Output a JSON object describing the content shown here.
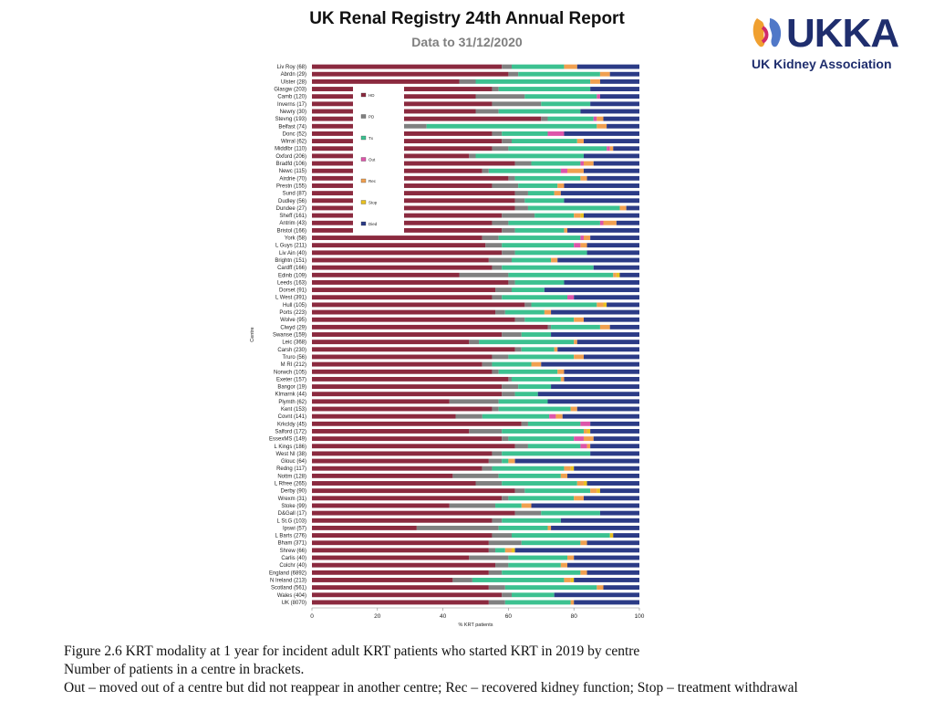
{
  "header": {
    "title": "UK Renal Registry 24th Annual Report",
    "subtitle": "Data to 31/12/2020",
    "logo_text": "UKKA",
    "logo_sub": "UK Kidney Association"
  },
  "caption": {
    "line1": "Figure 2.6 KRT modality at 1 year for incident adult KRT patients who started KRT in 2019 by centre",
    "line2": "Number of patients in a centre in brackets.",
    "line3": "Out – moved out of a centre but did not reappear in another centre; Rec – recovered kidney function; Stop – treatment withdrawal"
  },
  "colors": {
    "HD": "#8b2a3f",
    "PD": "#808080",
    "Tx": "#3cc190",
    "Out": "#dd55aa",
    "Rec": "#f0a050",
    "Stop": "#e8c020",
    "Died": "#2b3b86"
  },
  "chart_data": {
    "type": "bar",
    "orientation": "horizontal",
    "stacked": true,
    "xlabel": "% KRT patients",
    "ylabel": "Centre",
    "xlim": [
      0,
      100
    ],
    "xticks": [
      0,
      20,
      40,
      60,
      80,
      100
    ],
    "legend": [
      "HD",
      "PD",
      "Tx",
      "Out",
      "Rec",
      "Stop",
      "Died"
    ],
    "legend_position": "upper-left inside plot",
    "categories": [
      "Liv Roy (68)",
      "Abrdn (29)",
      "Ulster (28)",
      "Glasgw (203)",
      "Camb (120)",
      "Inverns (17)",
      "Newry (30)",
      "Stevng (193)",
      "Belfast (74)",
      "Donc (52)",
      "Wirral (62)",
      "Middlbr (110)",
      "Oxford (206)",
      "Bradfd (106)",
      "Newc (115)",
      "Airdrie (70)",
      "Prestn (155)",
      "Sund (87)",
      "Dudley (56)",
      "Dundee (27)",
      "Sheff (161)",
      "Antrim (43)",
      "Bristol (166)",
      "York (58)",
      "L Guys (211)",
      "Liv Ain (40)",
      "Brightn (151)",
      "Cardff (166)",
      "Edinb (109)",
      "Leeds (163)",
      "Dorset (91)",
      "L West (391)",
      "Hull (105)",
      "Ports (223)",
      "Wolve (95)",
      "Clwyd (29)",
      "Swanse (159)",
      "Leic (368)",
      "Carsh (230)",
      "Truro (56)",
      "M RI (212)",
      "Norwch (105)",
      "Exeter (157)",
      "Bangor (19)",
      "Klmarnk (44)",
      "Plymth (62)",
      "Kent (153)",
      "Covnt (141)",
      "Krkcldy (45)",
      "Salford (172)",
      "EssexMS (149)",
      "L Kings (186)",
      "West NI (38)",
      "Glouc (64)",
      "Redng (117)",
      "Nottm (128)",
      "L Rfree (265)",
      "Derby (90)",
      "Wrexm (31)",
      "Stoke (99)",
      "D&Gall (17)",
      "L St.G (103)",
      "Ipswi (57)",
      "L Barts (276)",
      "Bham (371)",
      "Shrew (66)",
      "Carlis (40)",
      "Colchr (40)",
      "England (6892)",
      "N Ireland (213)",
      "Scotland (561)",
      "Wales (404)",
      "UK (8070)"
    ],
    "series": [
      {
        "name": "HD",
        "values": [
          58,
          60,
          45,
          55,
          50,
          55,
          50,
          70,
          25,
          55,
          58,
          55,
          48,
          62,
          52,
          60,
          55,
          62,
          62,
          62,
          58,
          55,
          58,
          52,
          53,
          58,
          54,
          55,
          45,
          60,
          56,
          55,
          65,
          56,
          62,
          72,
          58,
          48,
          62,
          55,
          52,
          55,
          60,
          58,
          58,
          42,
          55,
          43,
          64,
          48,
          58,
          62,
          55,
          54,
          52,
          43,
          50,
          62,
          58,
          42,
          62,
          55,
          32,
          55,
          54,
          54,
          48,
          56,
          54,
          43,
          54,
          58,
          54
        ]
      },
      {
        "name": "PD",
        "values": [
          3,
          3,
          5,
          2,
          15,
          15,
          7,
          2,
          10,
          3,
          3,
          5,
          2,
          5,
          2,
          2,
          8,
          4,
          3,
          4,
          10,
          5,
          4,
          5,
          5,
          4,
          7,
          3,
          15,
          2,
          5,
          3,
          2,
          3,
          3,
          1,
          6,
          3,
          2,
          5,
          3,
          2,
          1,
          5,
          4,
          15,
          2,
          8,
          2,
          10,
          2,
          4,
          3,
          4,
          3,
          14,
          8,
          3,
          2,
          14,
          8,
          3,
          25,
          6,
          10,
          2,
          12,
          4,
          4,
          6,
          5,
          3,
          5
        ]
      },
      {
        "name": "Tx",
        "values": [
          16,
          25,
          35,
          28,
          22,
          15,
          25,
          14,
          52,
          14,
          20,
          30,
          33,
          15,
          22,
          20,
          12,
          8,
          12,
          28,
          12,
          28,
          15,
          25,
          22,
          22,
          12,
          28,
          32,
          15,
          10,
          20,
          20,
          12,
          15,
          15,
          9,
          29,
          10,
          20,
          12,
          18,
          15,
          10,
          7,
          15,
          22,
          20,
          16,
          25,
          20,
          16,
          27,
          2,
          22,
          19,
          23,
          20,
          20,
          8,
          18,
          18,
          15,
          30,
          18,
          3,
          18,
          16,
          24,
          28,
          28,
          13,
          20
        ]
      },
      {
        "name": "Out",
        "values": [
          0,
          0,
          0,
          0,
          1,
          0,
          0,
          1,
          0,
          5,
          0,
          1,
          0,
          1,
          2,
          0,
          0,
          0,
          0,
          0,
          0,
          1,
          0,
          1,
          2,
          0,
          0,
          0,
          0,
          0,
          0,
          2,
          0,
          0,
          0,
          0,
          0,
          0,
          0,
          0,
          0,
          0,
          0,
          0,
          0,
          0,
          0,
          2,
          3,
          0,
          3,
          2,
          0,
          0,
          0,
          0,
          0,
          0,
          0,
          0,
          0,
          0,
          0,
          0,
          0,
          0,
          0,
          0,
          0,
          0,
          0,
          0,
          0
        ]
      },
      {
        "name": "Rec",
        "values": [
          4,
          3,
          3,
          0,
          0,
          0,
          0,
          2,
          3,
          0,
          2,
          1,
          0,
          3,
          5,
          2,
          2,
          2,
          0,
          2,
          2,
          4,
          1,
          2,
          2,
          0,
          2,
          0,
          1,
          0,
          0,
          0,
          2,
          2,
          3,
          3,
          0,
          1,
          1,
          3,
          3,
          2,
          1,
          0,
          0,
          0,
          2,
          2,
          0,
          1,
          3,
          1,
          0,
          2,
          2,
          2,
          2,
          2,
          3,
          3,
          0,
          0,
          1,
          0,
          2,
          2,
          2,
          2,
          2,
          2,
          2,
          0,
          1
        ]
      },
      {
        "name": "Stop",
        "values": [
          0,
          0,
          0,
          0,
          0,
          0,
          0,
          0,
          0,
          0,
          0,
          0,
          0,
          0,
          0,
          0,
          0,
          0,
          0,
          0,
          1,
          0,
          0,
          0,
          0,
          0,
          0,
          0,
          1,
          0,
          0,
          0,
          1,
          0,
          0,
          0,
          0,
          0,
          0,
          0,
          0,
          0,
          0,
          0,
          0,
          0,
          0,
          0,
          0,
          1,
          0,
          0,
          0,
          0,
          1,
          0,
          1,
          1,
          0,
          0,
          0,
          0,
          0,
          1,
          0,
          1,
          0,
          0,
          0,
          1,
          0,
          0,
          0
        ]
      },
      {
        "name": "Died",
        "values": [
          19,
          9,
          12,
          15,
          12,
          15,
          18,
          11,
          10,
          23,
          17,
          8,
          17,
          14,
          17,
          16,
          23,
          24,
          23,
          4,
          17,
          7,
          22,
          15,
          16,
          16,
          25,
          14,
          6,
          23,
          29,
          20,
          10,
          27,
          17,
          9,
          27,
          19,
          25,
          17,
          30,
          23,
          23,
          27,
          31,
          28,
          19,
          23,
          15,
          15,
          14,
          15,
          15,
          38,
          20,
          22,
          16,
          12,
          17,
          33,
          12,
          24,
          27,
          8,
          16,
          38,
          20,
          22,
          16,
          20,
          11,
          26,
          20
        ]
      }
    ]
  }
}
